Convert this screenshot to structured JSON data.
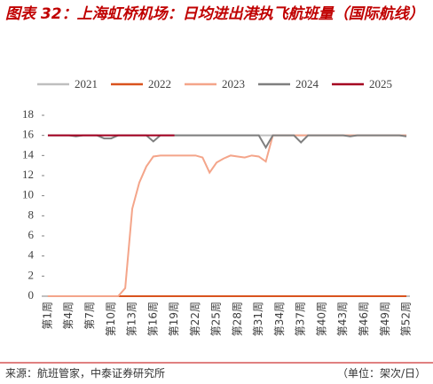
{
  "chart_data": {
    "type": "line",
    "title": "图表 32：上海虹桥机场：日均进出港执飞航班量（国际航线）",
    "categories": [
      "第1周",
      null,
      null,
      "第4周",
      null,
      null,
      "第7周",
      null,
      null,
      "第10周",
      null,
      null,
      "第13周",
      null,
      null,
      "第16周",
      null,
      null,
      "第19周",
      null,
      null,
      "第22周",
      null,
      null,
      "第25周",
      null,
      null,
      "第28周",
      null,
      null,
      "第31周",
      null,
      null,
      "第34周",
      null,
      null,
      "第37周",
      null,
      null,
      "第40周",
      null,
      null,
      "第43周",
      null,
      null,
      "第46周",
      null,
      null,
      "第49周",
      null,
      null,
      "第52周"
    ],
    "series": [
      {
        "name": "2021",
        "color": "#bfbfbf",
        "values": [
          16,
          16,
          16,
          16,
          16,
          16,
          16,
          16,
          16,
          16,
          16,
          16,
          16,
          16,
          16,
          16,
          16,
          16,
          16,
          16,
          16,
          16,
          16,
          16,
          16,
          16,
          16,
          16,
          16,
          16,
          16,
          16,
          16,
          16,
          16,
          16,
          16,
          16,
          16,
          16,
          16,
          16,
          16,
          16,
          16,
          16,
          16,
          16,
          16,
          16,
          16,
          16
        ]
      },
      {
        "name": "2022",
        "color": "#d9531e",
        "values": [
          0,
          0,
          0,
          0,
          0,
          0,
          0,
          0,
          0,
          0,
          0,
          0,
          0,
          0,
          0,
          0,
          0,
          0,
          0,
          0,
          0,
          0,
          0,
          0,
          0,
          0,
          0,
          0,
          0,
          0,
          0,
          0,
          0,
          0,
          0,
          0,
          0,
          0,
          0,
          0,
          0,
          0,
          0,
          0,
          0,
          0,
          0,
          0,
          0,
          0,
          0,
          0
        ]
      },
      {
        "name": "2023",
        "color": "#f4a58a",
        "values": [
          0,
          0,
          0,
          0,
          0,
          0,
          0,
          0,
          0,
          0,
          0,
          0.8,
          8.7,
          11.3,
          12.9,
          13.9,
          14,
          14,
          14,
          14,
          14,
          14,
          13.8,
          12.3,
          13.3,
          13.7,
          14,
          13.9,
          13.8,
          14,
          13.9,
          13.4,
          16,
          16,
          16,
          16,
          16,
          16,
          16,
          16,
          16,
          16,
          16,
          16,
          16,
          16,
          16,
          16,
          16,
          16,
          16,
          16
        ]
      },
      {
        "name": "2024",
        "color": "#7f7f7f",
        "values": [
          16,
          16,
          16,
          16,
          15.9,
          16,
          16,
          16,
          15.7,
          15.7,
          16,
          16,
          16,
          16,
          16,
          15.4,
          16,
          16,
          16,
          16,
          16,
          16,
          16,
          16,
          16,
          16,
          16,
          16,
          16,
          16,
          16,
          14.8,
          16,
          16,
          16,
          16,
          15.3,
          16,
          16,
          16,
          16,
          16,
          16,
          15.9,
          16,
          16,
          16,
          16,
          16,
          16,
          16,
          15.9
        ]
      },
      {
        "name": "2025",
        "color": "#a50021",
        "values": [
          16,
          16,
          16,
          16,
          16,
          16,
          16,
          16,
          16,
          16,
          16,
          16,
          16,
          16,
          16,
          16,
          16,
          16,
          16,
          null,
          null,
          null,
          null,
          null,
          null,
          null,
          null,
          null,
          null,
          null,
          null,
          null,
          null,
          null,
          null,
          null,
          null,
          null,
          null,
          null,
          null,
          null,
          null,
          null,
          null,
          null,
          null,
          null,
          null,
          null,
          null,
          null
        ]
      }
    ],
    "ylim": [
      0,
      18
    ],
    "yticks": [
      0,
      2,
      4,
      6,
      8,
      10,
      12,
      14,
      16,
      18
    ],
    "source": "来源：航班管家，中泰证券研究所",
    "unit": "（单位：架次/日）"
  }
}
